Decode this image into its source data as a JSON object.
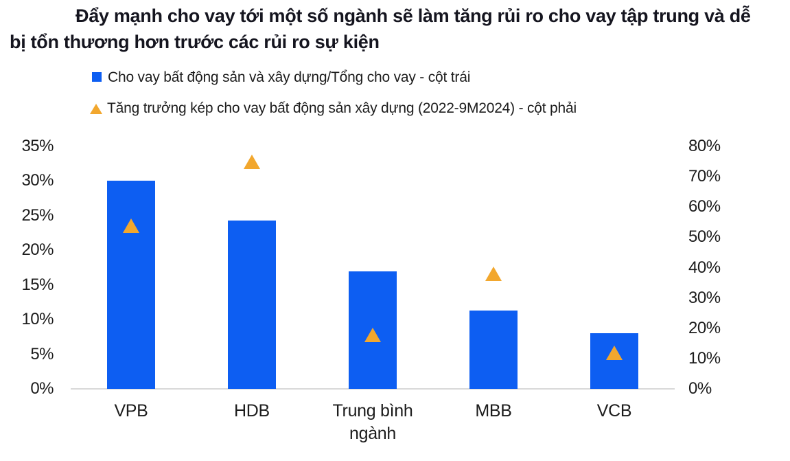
{
  "title": "Đẩy mạnh cho vay tới một số ngành sẽ làm tăng rủi ro cho vay tập trung và dễ bị tổn thương hơn trước các rủi ro sự kiện",
  "legend": {
    "items": [
      {
        "marker": "square-icon",
        "color": "#0D5EF2",
        "label": "Cho vay bất động sản và xây dựng/Tổng cho vay - cột trái"
      },
      {
        "marker": "triangle-icon",
        "color": "#F2A72E",
        "label": "Tăng trưởng kép cho vay bất động sản xây dựng (2022-9M2024) - cột phải"
      }
    ]
  },
  "colors": {
    "bar_blue": "#0D5EF2",
    "triangle_amber": "#F2A72E",
    "axis_line": "#d9d9d9"
  },
  "chart_data": {
    "type": "bar",
    "title": "Đẩy mạnh cho vay tới một số ngành sẽ làm tăng rủi ro cho vay tập trung và dễ bị tổn thương hơn trước các rủi ro sự kiện",
    "categories": [
      "VPB",
      "HDB",
      "Trung bình ngành",
      "MBB",
      "VCB"
    ],
    "series": [
      {
        "name": "Cho vay bất động sản và xây dựng/Tổng cho vay - cột trái",
        "type": "bar",
        "axis": "left",
        "color": "#0D5EF2",
        "values": [
          30,
          24.3,
          17,
          11.3,
          8
        ]
      },
      {
        "name": "Tăng trưởng kép cho vay bất động sản xây dựng (2022-9M2024) - cột phải",
        "type": "scatter",
        "marker": "triangle",
        "axis": "right",
        "color": "#F2A72E",
        "values": [
          54,
          75,
          18,
          38,
          12
        ]
      }
    ],
    "left_axis": {
      "min": 0,
      "max": 35,
      "step": 5,
      "tick_labels": [
        "0%",
        "5%",
        "10%",
        "15%",
        "20%",
        "25%",
        "30%",
        "35%"
      ]
    },
    "right_axis": {
      "min": 0,
      "max": 80,
      "step": 10,
      "tick_labels": [
        "0%",
        "10%",
        "20%",
        "30%",
        "40%",
        "50%",
        "60%",
        "70%",
        "80%"
      ]
    },
    "grid": false,
    "legend_position": "top-left",
    "unit": "percent"
  }
}
